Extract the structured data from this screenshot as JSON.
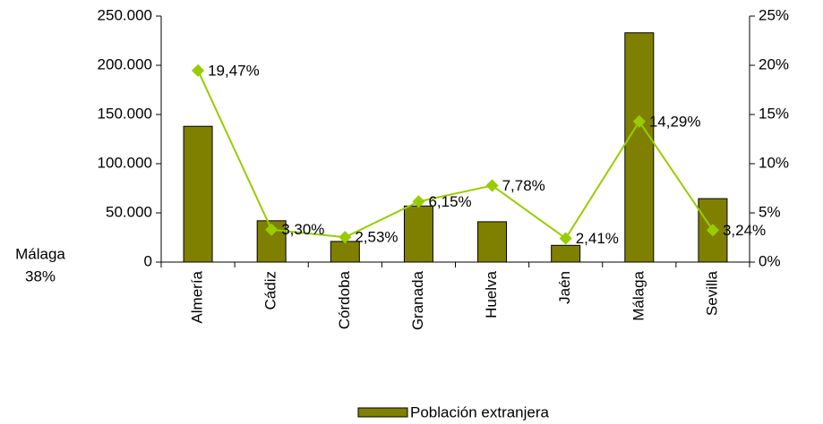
{
  "chart_data": {
    "type": "bar_line",
    "categories": [
      "Almería",
      "Cádiz",
      "Córdoba",
      "Granada",
      "Huelva",
      "Jaén",
      "Málaga",
      "Sevilla"
    ],
    "series": [
      {
        "name": "Población extranjera",
        "color": "#808000",
        "values": [
          138000,
          42000,
          21000,
          57000,
          41000,
          17000,
          233000,
          64500
        ]
      },
      {
        "color": "#99cc00",
        "axis": "y2",
        "values": [
          19.47,
          3.3,
          2.53,
          6.15,
          7.78,
          2.41,
          14.29,
          3.24
        ],
        "value_labels": [
          "19,47%",
          "3,30%",
          "2,53%",
          "6,15%",
          "7,78%",
          "2,41%",
          "14,29%",
          "3,24%"
        ]
      }
    ],
    "ylim": [
      0,
      250000
    ],
    "yticks": [
      0,
      {
        "value": 50000,
        "label": "50.000"
      },
      {
        "value": 100000,
        "label": "100.000"
      },
      {
        "value": 150000,
        "label": "150.000"
      },
      {
        "value": 200000,
        "label": "200.000"
      },
      {
        "value": 250000,
        "label": "250.000"
      }
    ],
    "y2lim": [
      0,
      25
    ],
    "y2ticks": [
      {
        "value": 0,
        "label": "0%"
      },
      {
        "value": 5,
        "label": "5%"
      },
      {
        "value": 10,
        "label": "10%"
      },
      {
        "value": 15,
        "label": "15%"
      },
      {
        "value": 20,
        "label": "20%"
      },
      {
        "value": 25,
        "label": "25%"
      }
    ],
    "annotations": [
      "Málaga",
      "38%"
    ],
    "legend": "bottom"
  }
}
